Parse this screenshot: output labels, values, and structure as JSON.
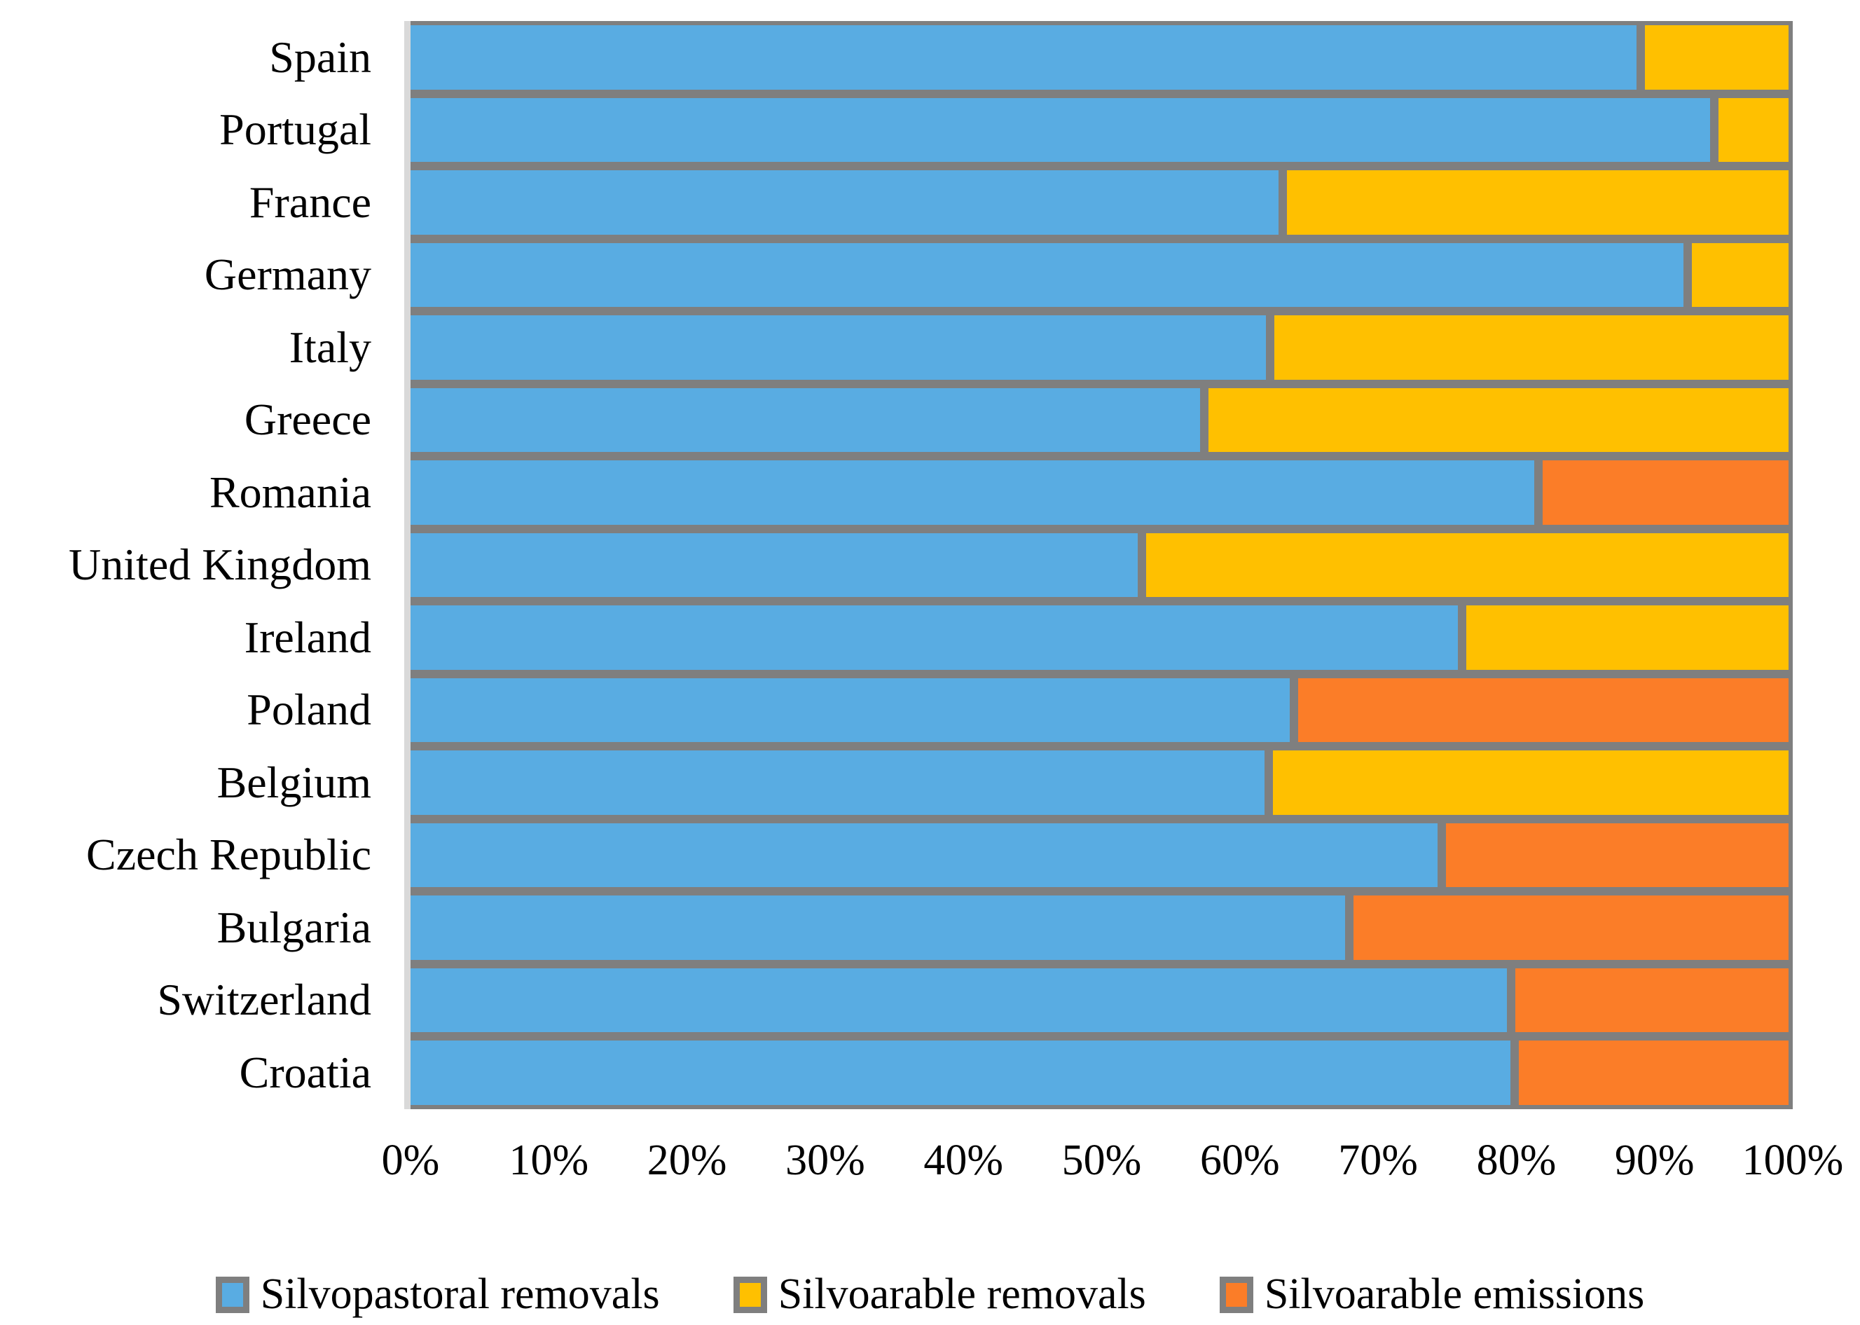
{
  "chart_data": {
    "type": "bar",
    "orientation": "horizontal",
    "stacked": true,
    "unit": "percent",
    "title": "",
    "xlabel": "",
    "ylabel": "",
    "grid": false,
    "legend_position": "bottom",
    "bar_border_color": "#7F7F7F",
    "axis_line_color": "#D9D9D9",
    "background_color": "#FFFFFF",
    "text_color": "#000000",
    "categories": [
      "Spain",
      "Portugal",
      "France",
      "Germany",
      "Italy",
      "Greece",
      "Romania",
      "United Kingdom",
      "Ireland",
      "Poland",
      "Belgium",
      "Czech Republic",
      "Bulgaria",
      "Switzerland",
      "Croatia"
    ],
    "series": [
      {
        "name": "Silvopastoral removals",
        "color": "#59ACE2",
        "values": [
          89.0,
          94.3,
          63.1,
          92.4,
          62.2,
          57.4,
          81.6,
          52.9,
          76.1,
          63.9,
          62.1,
          74.6,
          67.9,
          79.6,
          79.9
        ]
      },
      {
        "name": "Silvoarable removals",
        "color": "#FFC000",
        "values": [
          11.0,
          5.7,
          36.9,
          7.6,
          37.8,
          42.6,
          0,
          47.1,
          23.9,
          0,
          37.9,
          0,
          0,
          0,
          0
        ]
      },
      {
        "name": "Silvoarable emissions",
        "color": "#FB7D28",
        "values": [
          0,
          0,
          0,
          0,
          0,
          0,
          18.4,
          0,
          0,
          36.1,
          0,
          25.4,
          32.1,
          20.4,
          20.1
        ]
      }
    ],
    "x_axis": {
      "min": 0,
      "max": 100,
      "ticks": [
        "0%",
        "10%",
        "20%",
        "30%",
        "40%",
        "50%",
        "60%",
        "70%",
        "80%",
        "90%",
        "100%"
      ]
    }
  }
}
